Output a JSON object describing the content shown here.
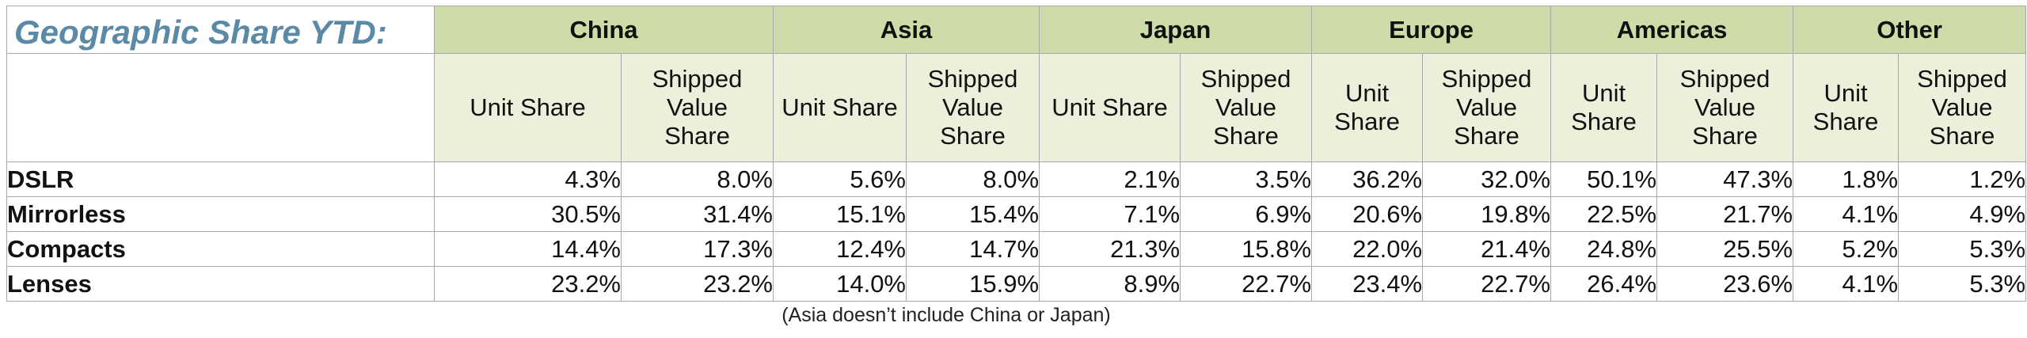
{
  "title": "Geographic Share YTD:",
  "footnote": "(Asia doesn’t include China or Japan)",
  "chart_data": {
    "type": "table",
    "title": "Geographic Share YTD:",
    "regions": [
      "China",
      "Asia",
      "Japan",
      "Europe",
      "Americas",
      "Other"
    ],
    "subheaders": [
      "Unit Share",
      "Shipped Value Share"
    ],
    "rows": [
      {
        "label": "DSLR",
        "values": [
          "4.3%",
          "8.0%",
          "5.6%",
          "8.0%",
          "2.1%",
          "3.5%",
          "36.2%",
          "32.0%",
          "50.1%",
          "47.3%",
          "1.8%",
          "1.2%"
        ]
      },
      {
        "label": "Mirrorless",
        "values": [
          "30.5%",
          "31.4%",
          "15.1%",
          "15.4%",
          "7.1%",
          "6.9%",
          "20.6%",
          "19.8%",
          "22.5%",
          "21.7%",
          "4.1%",
          "4.9%"
        ]
      },
      {
        "label": "Compacts",
        "values": [
          "14.4%",
          "17.3%",
          "12.4%",
          "14.7%",
          "21.3%",
          "15.8%",
          "22.0%",
          "21.4%",
          "24.8%",
          "25.5%",
          "5.2%",
          "5.3%"
        ]
      },
      {
        "label": "Lenses",
        "values": [
          "23.2%",
          "23.2%",
          "14.0%",
          "15.9%",
          "8.9%",
          "22.7%",
          "23.4%",
          "22.7%",
          "26.4%",
          "23.6%",
          "4.1%",
          "5.3%"
        ]
      }
    ],
    "colors": {
      "title": "#5b8aa6",
      "region_header_bg": "#cddca8",
      "subheader_bg": "#eaf0da"
    }
  }
}
